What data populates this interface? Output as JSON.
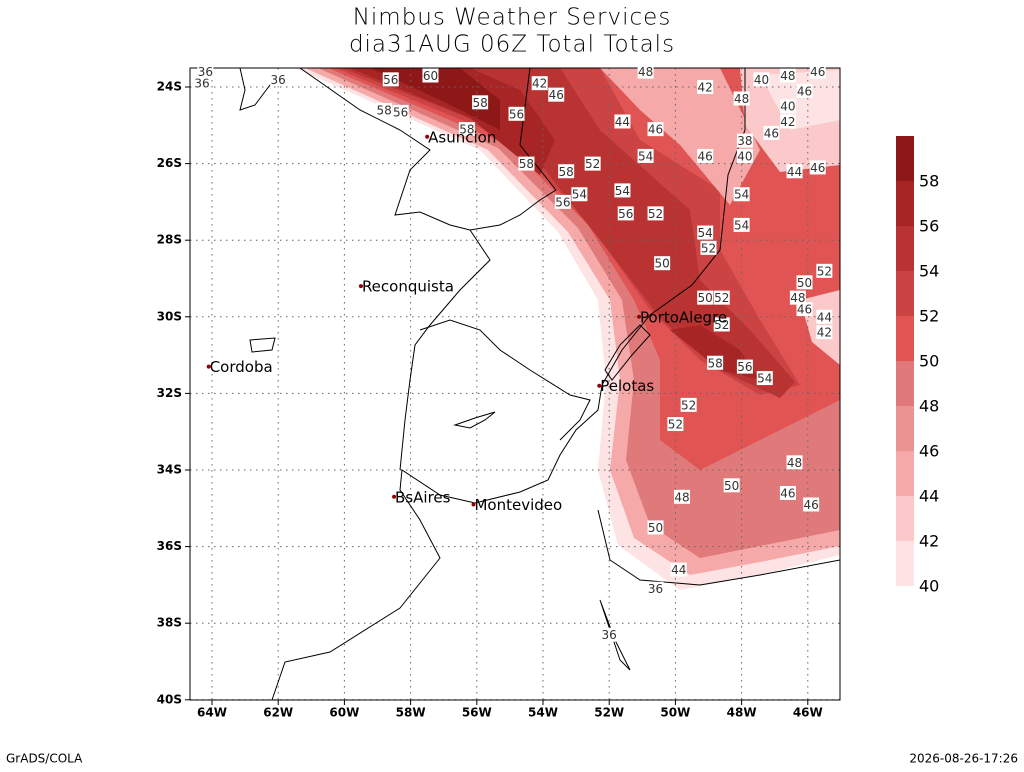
{
  "header": {
    "title": "Nimbus Weather Services",
    "subtitle": "dia31AUG 06Z Total Totals"
  },
  "map": {
    "lon_ticks": [
      {
        "value": -64,
        "label": "64W"
      },
      {
        "value": -62,
        "label": "62W"
      },
      {
        "value": -60,
        "label": "60W"
      },
      {
        "value": -58,
        "label": "58W"
      },
      {
        "value": -56,
        "label": "56W"
      },
      {
        "value": -54,
        "label": "54W"
      },
      {
        "value": -52,
        "label": "52W"
      },
      {
        "value": -50,
        "label": "50W"
      },
      {
        "value": -48,
        "label": "48W"
      },
      {
        "value": -46,
        "label": "46W"
      }
    ],
    "lat_ticks": [
      {
        "value": -24,
        "label": "24S"
      },
      {
        "value": -26,
        "label": "26S"
      },
      {
        "value": -28,
        "label": "28S"
      },
      {
        "value": -30,
        "label": "30S"
      },
      {
        "value": -32,
        "label": "32S"
      },
      {
        "value": -34,
        "label": "34S"
      },
      {
        "value": -36,
        "label": "36S"
      },
      {
        "value": -38,
        "label": "38S"
      },
      {
        "value": -40,
        "label": "40S"
      }
    ],
    "grid": true,
    "cities": [
      {
        "name": "Asuncion",
        "lon": -57.5,
        "lat": -25.3
      },
      {
        "name": "Reconquista",
        "lon": -59.5,
        "lat": -29.2
      },
      {
        "name": "Cordoba",
        "lon": -64.1,
        "lat": -31.3
      },
      {
        "name": "PortoAlegre",
        "lon": -51.1,
        "lat": -30.0
      },
      {
        "name": "Pelotas",
        "lon": -52.3,
        "lat": -31.8
      },
      {
        "name": "BsAires",
        "lon": -58.5,
        "lat": -34.7
      },
      {
        "name": "Montevideo",
        "lon": -56.1,
        "lat": -34.9
      }
    ],
    "contour_labels": [
      {
        "value": 56,
        "lon": -58.6,
        "lat": -23.8
      },
      {
        "value": 60,
        "lon": -57.4,
        "lat": -23.7
      },
      {
        "value": 58,
        "lon": -58.8,
        "lat": -24.6
      },
      {
        "value": 56,
        "lon": -58.3,
        "lat": -24.65
      },
      {
        "value": 58,
        "lon": -55.9,
        "lat": -24.4
      },
      {
        "value": 56,
        "lon": -54.8,
        "lat": -24.7
      },
      {
        "value": 58,
        "lon": -56.3,
        "lat": -25.1
      },
      {
        "value": 46,
        "lon": -53.6,
        "lat": -24.2
      },
      {
        "value": 42,
        "lon": -54.1,
        "lat": -23.9
      },
      {
        "value": 48,
        "lon": -50.9,
        "lat": -23.6
      },
      {
        "value": 42,
        "lon": -49.1,
        "lat": -24.0
      },
      {
        "value": 40,
        "lon": -47.4,
        "lat": -23.8
      },
      {
        "value": 48,
        "lon": -46.6,
        "lat": -23.7
      },
      {
        "value": 46,
        "lon": -45.7,
        "lat": -23.6
      },
      {
        "value": 46,
        "lon": -46.1,
        "lat": -24.1
      },
      {
        "value": 48,
        "lon": -48.0,
        "lat": -24.3
      },
      {
        "value": 40,
        "lon": -46.6,
        "lat": -24.5
      },
      {
        "value": 42,
        "lon": -46.6,
        "lat": -24.9
      },
      {
        "value": 44,
        "lon": -51.6,
        "lat": -24.9
      },
      {
        "value": 46,
        "lon": -50.6,
        "lat": -25.1
      },
      {
        "value": 46,
        "lon": -47.1,
        "lat": -25.2
      },
      {
        "value": 38,
        "lon": -47.9,
        "lat": -25.4
      },
      {
        "value": 40,
        "lon": -47.9,
        "lat": -25.8
      },
      {
        "value": 46,
        "lon": -49.1,
        "lat": -25.8
      },
      {
        "value": 54,
        "lon": -50.9,
        "lat": -25.8
      },
      {
        "value": 58,
        "lon": -54.5,
        "lat": -26.0
      },
      {
        "value": 58,
        "lon": -53.3,
        "lat": -26.2
      },
      {
        "value": 52,
        "lon": -52.5,
        "lat": -26.0
      },
      {
        "value": 44,
        "lon": -46.4,
        "lat": -26.2
      },
      {
        "value": 46,
        "lon": -45.7,
        "lat": -26.1
      },
      {
        "value": 54,
        "lon": -52.9,
        "lat": -26.8
      },
      {
        "value": 56,
        "lon": -53.4,
        "lat": -27.0
      },
      {
        "value": 54,
        "lon": -51.6,
        "lat": -26.7
      },
      {
        "value": 56,
        "lon": -51.5,
        "lat": -27.3
      },
      {
        "value": 52,
        "lon": -50.6,
        "lat": -27.3
      },
      {
        "value": 54,
        "lon": -48.0,
        "lat": -26.8
      },
      {
        "value": 54,
        "lon": -48.0,
        "lat": -27.6
      },
      {
        "value": 54,
        "lon": -49.1,
        "lat": -27.8
      },
      {
        "value": 52,
        "lon": -49.0,
        "lat": -28.2
      },
      {
        "value": 50,
        "lon": -50.4,
        "lat": -28.6
      },
      {
        "value": 52,
        "lon": -45.5,
        "lat": -28.8
      },
      {
        "value": 50,
        "lon": -46.1,
        "lat": -29.1
      },
      {
        "value": 48,
        "lon": -46.3,
        "lat": -29.5
      },
      {
        "value": 46,
        "lon": -46.1,
        "lat": -29.8
      },
      {
        "value": 44,
        "lon": -45.5,
        "lat": -30.0
      },
      {
        "value": 42,
        "lon": -45.5,
        "lat": -30.4
      },
      {
        "value": 52,
        "lon": -48.6,
        "lat": -29.5
      },
      {
        "value": 50,
        "lon": -49.1,
        "lat": -29.5
      },
      {
        "value": 52,
        "lon": -48.6,
        "lat": -30.2
      },
      {
        "value": 58,
        "lon": -48.8,
        "lat": -31.2
      },
      {
        "value": 56,
        "lon": -47.9,
        "lat": -31.3
      },
      {
        "value": 54,
        "lon": -47.3,
        "lat": -31.6
      },
      {
        "value": 52,
        "lon": -49.6,
        "lat": -32.3
      },
      {
        "value": 52,
        "lon": -50.0,
        "lat": -32.8
      },
      {
        "value": 48,
        "lon": -46.4,
        "lat": -33.8
      },
      {
        "value": 50,
        "lon": -48.3,
        "lat": -34.4
      },
      {
        "value": 48,
        "lon": -49.8,
        "lat": -34.7
      },
      {
        "value": 46,
        "lon": -46.6,
        "lat": -34.6
      },
      {
        "value": 46,
        "lon": -45.9,
        "lat": -34.9
      },
      {
        "value": 50,
        "lon": -50.6,
        "lat": -35.5
      },
      {
        "value": 44,
        "lon": -49.9,
        "lat": -36.6
      },
      {
        "value": 36,
        "lon": -50.6,
        "lat": -37.1
      },
      {
        "value": 36,
        "lon": -52.0,
        "lat": -38.3
      },
      {
        "value": 36,
        "lon": -62.0,
        "lat": -23.8
      },
      {
        "value": 36,
        "lon": -64.3,
        "lat": -23.9
      },
      {
        "value": 36,
        "lon": -64.2,
        "lat": -23.6
      }
    ]
  },
  "colorbar": {
    "levels": [
      40,
      42,
      44,
      46,
      48,
      50,
      52,
      54,
      56,
      58
    ],
    "colors": [
      "#fde3e3",
      "#fbc9c9",
      "#f5a9a9",
      "#e99393",
      "#e07a7a",
      "#e05454",
      "#cb4343",
      "#ba3333",
      "#a82525",
      "#8e1818"
    ]
  },
  "footer": {
    "left": "GrADS/COLA",
    "right": "2026-08-26-17:26"
  }
}
